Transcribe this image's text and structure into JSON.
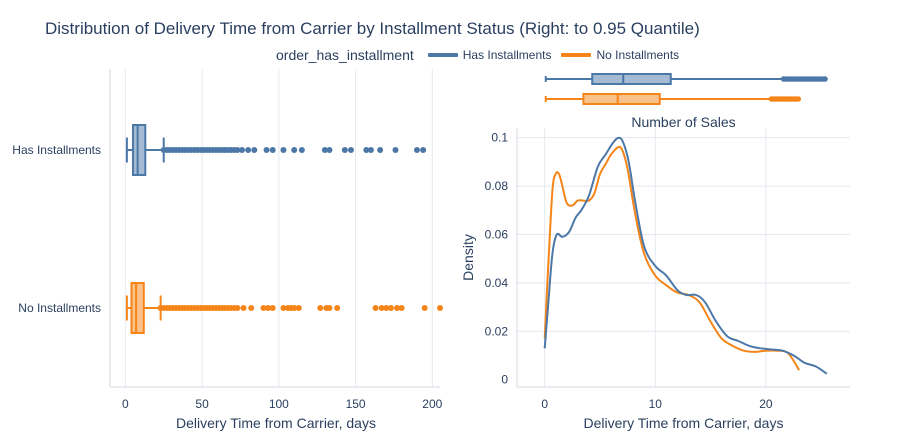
{
  "title": "Distribution of Delivery Time from Carrier by Installment Status (Right: to 0.95 Quantile)",
  "legend": {
    "title": "order_has_installment",
    "items": [
      {
        "label": "Has Installments",
        "color": "#4c78a8"
      },
      {
        "label": "No Installments",
        "color": "#f58518"
      }
    ]
  },
  "chart_data": [
    {
      "type": "box",
      "orientation": "horizontal",
      "xlabel": "Delivery Time from Carrier, days",
      "xlim": [
        -10,
        205
      ],
      "xticks": [
        0,
        50,
        100,
        150,
        200
      ],
      "categories": [
        "Has Installments",
        "No Installments"
      ],
      "grid": true,
      "series": [
        {
          "name": "Has Installments",
          "color": "#4c78a8",
          "min": 1,
          "q1": 5,
          "median": 8,
          "q3": 13,
          "upper_fence": 25,
          "outliers": [
            25,
            27,
            29,
            31,
            33,
            35,
            37,
            39,
            41,
            43,
            45,
            47,
            49,
            51,
            53,
            55,
            57,
            59,
            61,
            63,
            65,
            67,
            69,
            71,
            73,
            76,
            80,
            84,
            92,
            96,
            103,
            110,
            115,
            130,
            133,
            143,
            147,
            157,
            160,
            166,
            176,
            190,
            194
          ]
        },
        {
          "name": "No Installments",
          "color": "#f58518",
          "min": 1,
          "q1": 4,
          "median": 7,
          "q3": 12,
          "upper_fence": 23,
          "outliers": [
            23,
            25,
            27,
            29,
            31,
            33,
            35,
            37,
            39,
            41,
            43,
            45,
            47,
            49,
            51,
            53,
            55,
            57,
            59,
            61,
            63,
            65,
            67,
            69,
            71,
            73,
            77,
            82,
            90,
            93,
            96,
            103,
            106,
            108,
            110,
            113,
            127,
            131,
            133,
            138,
            163,
            167,
            170,
            173,
            177,
            180,
            195,
            205
          ]
        }
      ]
    },
    {
      "type": "box",
      "orientation": "horizontal",
      "subplot": "marginal",
      "xlim": [
        -2.5,
        27.6
      ],
      "series": [
        {
          "name": "Has Installments",
          "color": "#4c78a8",
          "min": 0.1,
          "q1": 4.3,
          "median": 7.1,
          "q3": 11.4,
          "upper_fence": 21.6,
          "outlier_range": [
            21.6,
            25.5
          ]
        },
        {
          "name": "No Installments",
          "color": "#f58518",
          "min": 0.1,
          "q1": 3.5,
          "median": 6.6,
          "q3": 10.4,
          "upper_fence": 20.5,
          "outlier_range": [
            20.5,
            23.0
          ]
        }
      ]
    },
    {
      "type": "line",
      "title": "Number of Sales",
      "xlabel": "Delivery Time from Carrier, days",
      "ylabel": "Density",
      "xlim": [
        -2.5,
        27.6
      ],
      "ylim": [
        -0.003,
        0.104
      ],
      "xticks": [
        0,
        10,
        20
      ],
      "yticks": [
        0,
        0.02,
        0.04,
        0.06,
        0.08,
        0.1
      ],
      "grid": true,
      "series": [
        {
          "name": "Has Installments",
          "color": "#4c78a8",
          "x": [
            0,
            0.3,
            0.7,
            1.1,
            1.6,
            2.2,
            2.8,
            3.3,
            4.0,
            4.8,
            5.5,
            6.2,
            6.7,
            7.1,
            7.6,
            8.2,
            9.0,
            10.0,
            11.0,
            12.0,
            12.8,
            13.7,
            14.5,
            15.5,
            16.5,
            17.5,
            18.5,
            19.5,
            20.5,
            21.5,
            22.5,
            23.5,
            24.5,
            25.5
          ],
          "y": [
            0.013,
            0.03,
            0.052,
            0.06,
            0.059,
            0.061,
            0.067,
            0.07,
            0.076,
            0.088,
            0.093,
            0.098,
            0.1,
            0.098,
            0.09,
            0.073,
            0.055,
            0.047,
            0.043,
            0.037,
            0.035,
            0.035,
            0.032,
            0.024,
            0.018,
            0.016,
            0.014,
            0.013,
            0.0125,
            0.012,
            0.01,
            0.007,
            0.0055,
            0.0025
          ]
        },
        {
          "name": "No Installments",
          "color": "#f58518",
          "x": [
            0,
            0.3,
            0.7,
            1.0,
            1.3,
            1.6,
            2.0,
            2.5,
            3.0,
            3.5,
            4.0,
            4.5,
            5.0,
            5.5,
            6.0,
            6.6,
            7.0,
            7.5,
            8.2,
            9.0,
            10.0,
            11.0,
            12.0,
            13.0,
            14.0,
            15.0,
            16.0,
            17.0,
            18.0,
            19.0,
            20.0,
            21.0,
            22.0,
            23.0
          ],
          "y": [
            0.017,
            0.045,
            0.078,
            0.085,
            0.085,
            0.08,
            0.073,
            0.072,
            0.074,
            0.074,
            0.074,
            0.077,
            0.085,
            0.089,
            0.093,
            0.096,
            0.095,
            0.087,
            0.068,
            0.052,
            0.043,
            0.039,
            0.036,
            0.035,
            0.032,
            0.024,
            0.017,
            0.014,
            0.012,
            0.0115,
            0.012,
            0.012,
            0.011,
            0.004
          ]
        }
      ]
    }
  ]
}
